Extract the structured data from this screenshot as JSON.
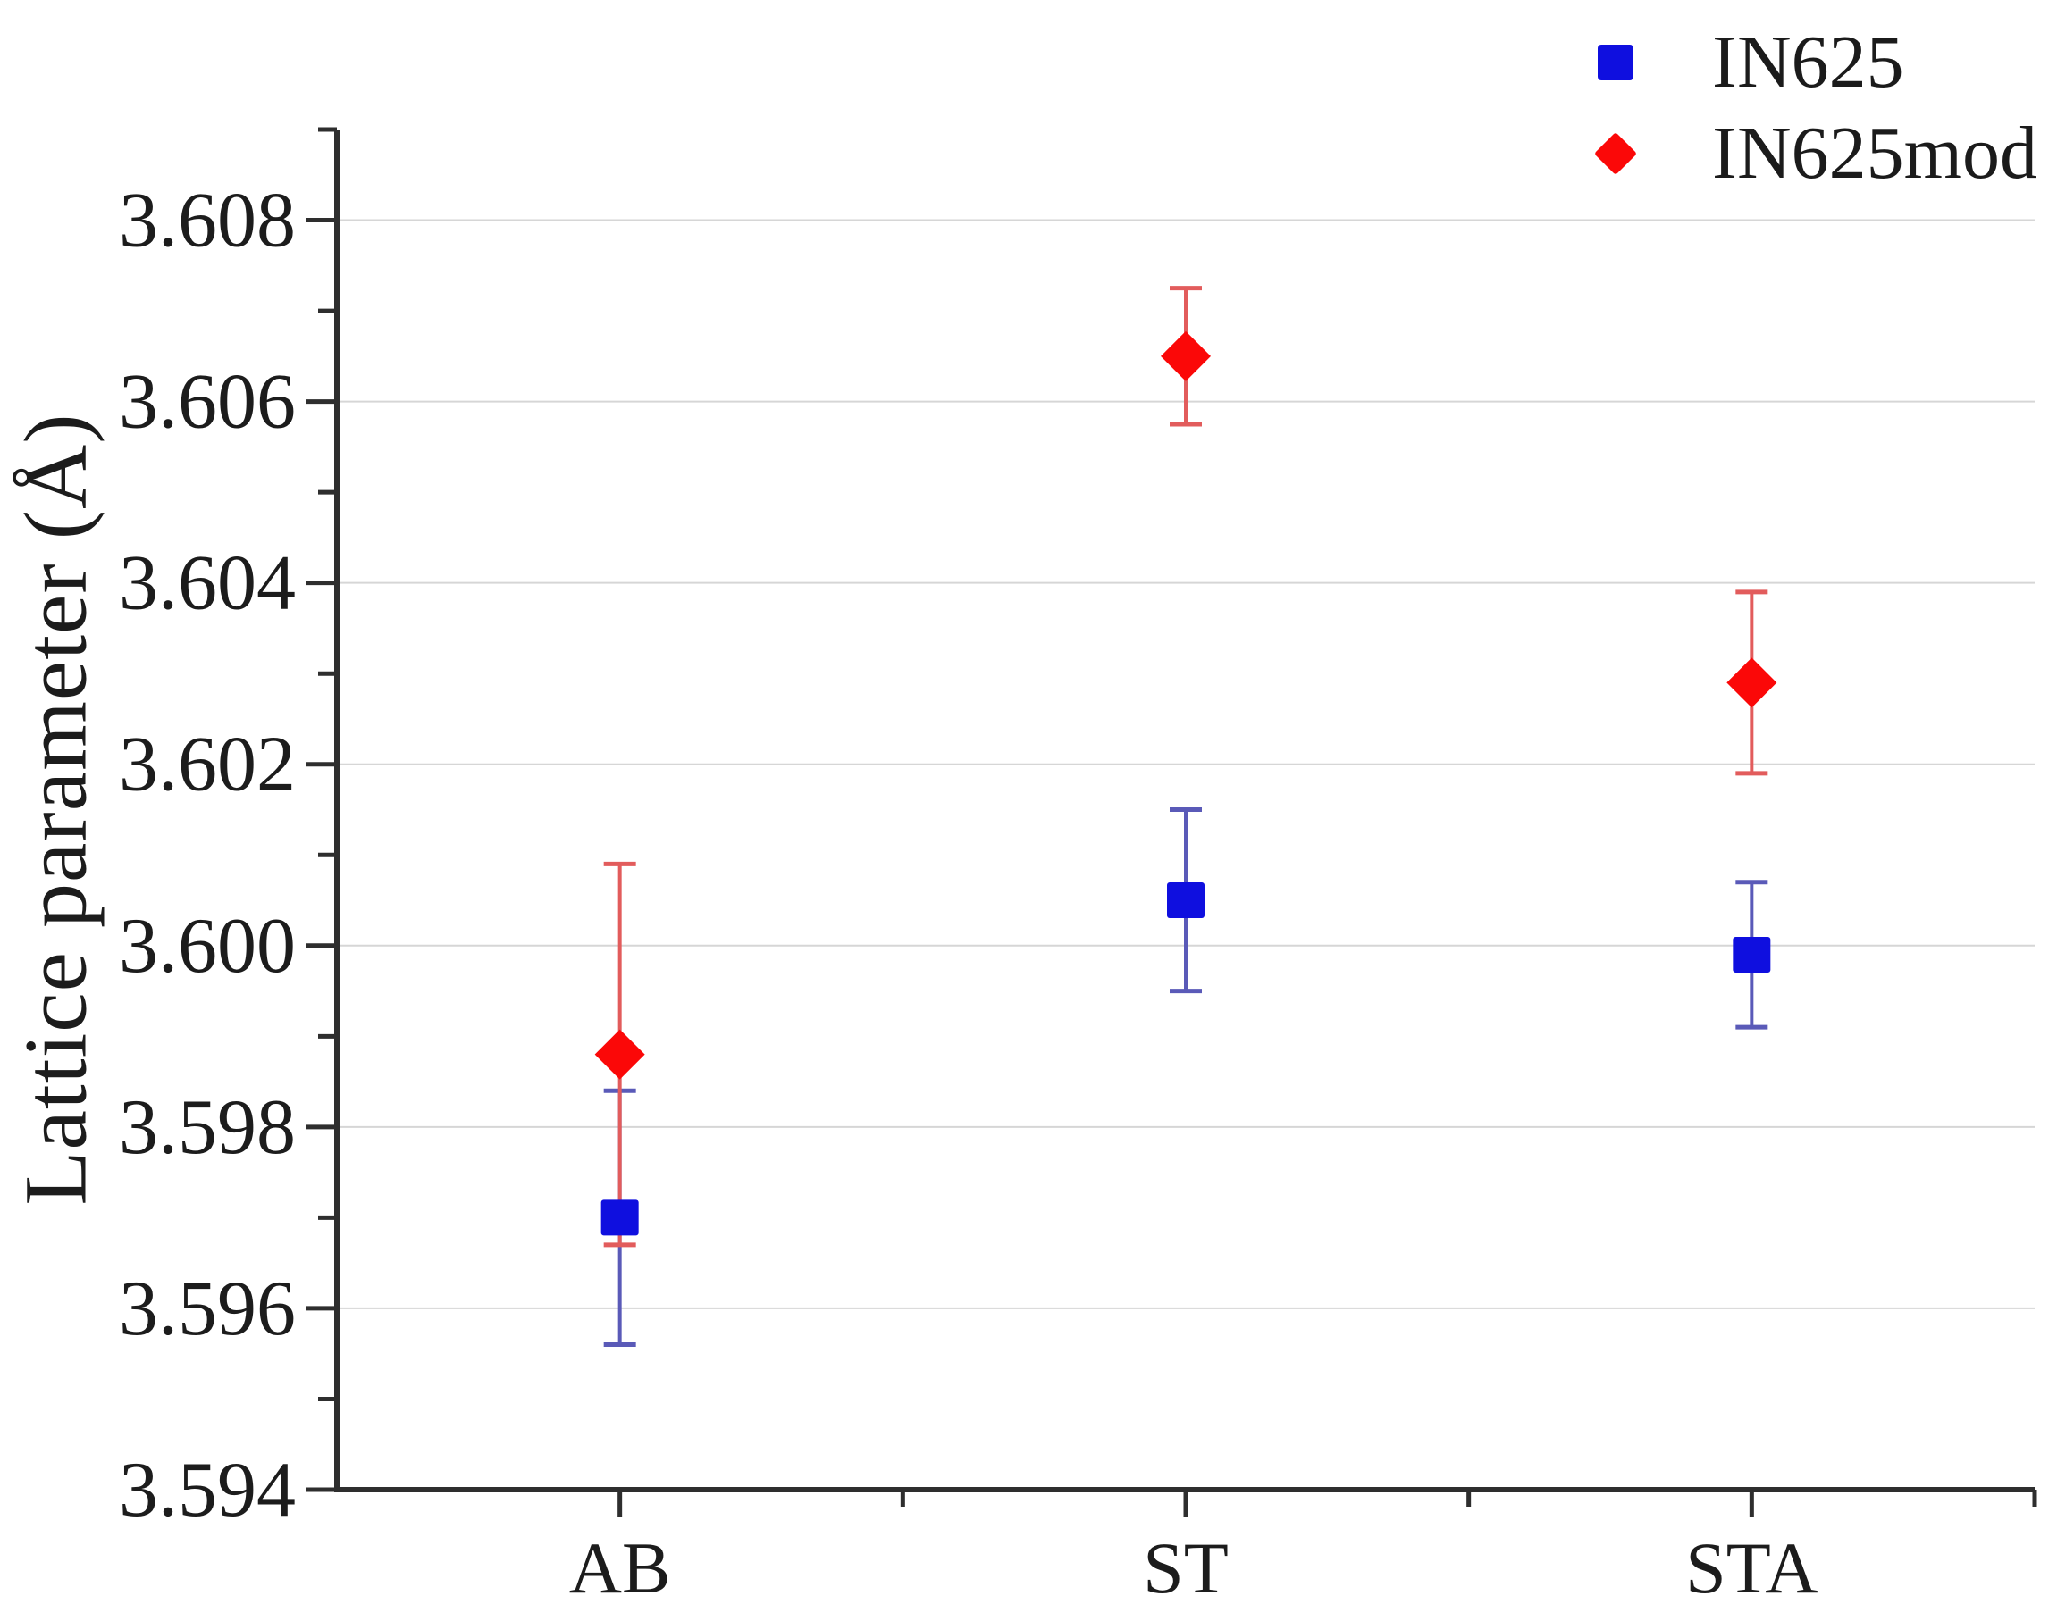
{
  "chart_data": {
    "type": "scatter",
    "title": "",
    "xlabel": "",
    "ylabel": "Lattice parameter (Å)",
    "categories": [
      "AB",
      "ST",
      "STA"
    ],
    "ylim": [
      3.594,
      3.609
    ],
    "yticks_major": [
      3.594,
      3.596,
      3.598,
      3.6,
      3.602,
      3.604,
      3.606,
      3.608
    ],
    "ytick_minor_step": 0.001,
    "ytick_label_decimals": 3,
    "grid": "horizontal-major-only",
    "legend_position": "top-right",
    "axis_color": "#2e2e2e",
    "grid_color": "#d6d6d6",
    "text_color": "#1c1c1c",
    "series": [
      {
        "name": "IN625",
        "marker": "square",
        "color": "#0f0fdf",
        "error_color": "#5a5ab8",
        "values": [
          3.597,
          3.6005,
          3.5999
        ],
        "errors": [
          0.0014,
          0.001,
          0.0008
        ]
      },
      {
        "name": "IN625mod",
        "marker": "diamond",
        "color": "#fb0808",
        "error_color": "#e25c5c",
        "values": [
          3.5988,
          3.6065,
          3.6029
        ],
        "errors": [
          0.0021,
          0.00075,
          0.001
        ]
      }
    ]
  }
}
